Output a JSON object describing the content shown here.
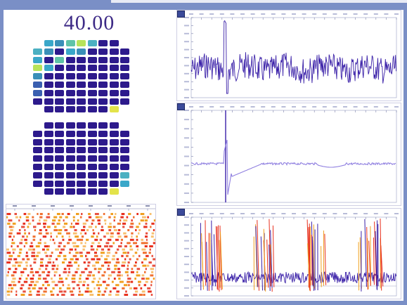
{
  "counter": {
    "value": "40.00"
  },
  "colors": {
    "page_border": "#7a8fc6",
    "cell_default": "#2d1a8c",
    "signal_dark": "#3a20a8",
    "signal_light": "#8f7fe0",
    "spike_orange": "#f0a020",
    "spike_red": "#e8301e"
  },
  "top_array": {
    "highlights": [
      {
        "row": 0,
        "col": 1,
        "color": "#3aa7c9"
      },
      {
        "row": 0,
        "col": 2,
        "color": "#3a8fb8"
      },
      {
        "row": 0,
        "col": 3,
        "color": "#5fc3a8"
      },
      {
        "row": 0,
        "col": 4,
        "color": "#b7e35a"
      },
      {
        "row": 0,
        "col": 5,
        "color": "#4bb0c2"
      },
      {
        "row": 1,
        "col": 0,
        "color": "#4bb0c2"
      },
      {
        "row": 1,
        "col": 1,
        "color": "#3a8fb8"
      },
      {
        "row": 1,
        "col": 3,
        "color": "#3aa7c9"
      },
      {
        "row": 1,
        "col": 4,
        "color": "#3a8fb8"
      },
      {
        "row": 2,
        "col": 0,
        "color": "#3aa7c9"
      },
      {
        "row": 2,
        "col": 2,
        "color": "#5fc3a8"
      },
      {
        "row": 3,
        "col": 0,
        "color": "#b7e35a"
      },
      {
        "row": 3,
        "col": 1,
        "color": "#3aa7c9"
      },
      {
        "row": 4,
        "col": 0,
        "color": "#3a8fb8"
      },
      {
        "row": 5,
        "col": 0,
        "color": "#3a5fb0"
      },
      {
        "row": 6,
        "col": 0,
        "color": "#3a5fb0"
      },
      {
        "row": 8,
        "col": 7,
        "color": "#e3e34a"
      }
    ]
  },
  "bottom_array": {
    "highlights": [
      {
        "row": 6,
        "col": 8,
        "color": "#4bb0c2"
      },
      {
        "row": 7,
        "col": 8,
        "color": "#3aa7c9"
      },
      {
        "row": 8,
        "col": 7,
        "color": "#e3e34a"
      }
    ]
  },
  "panels": [
    {
      "name": "raw-signal-panel"
    },
    {
      "name": "average-signal-panel"
    },
    {
      "name": "spike-overlay-panel"
    }
  ]
}
